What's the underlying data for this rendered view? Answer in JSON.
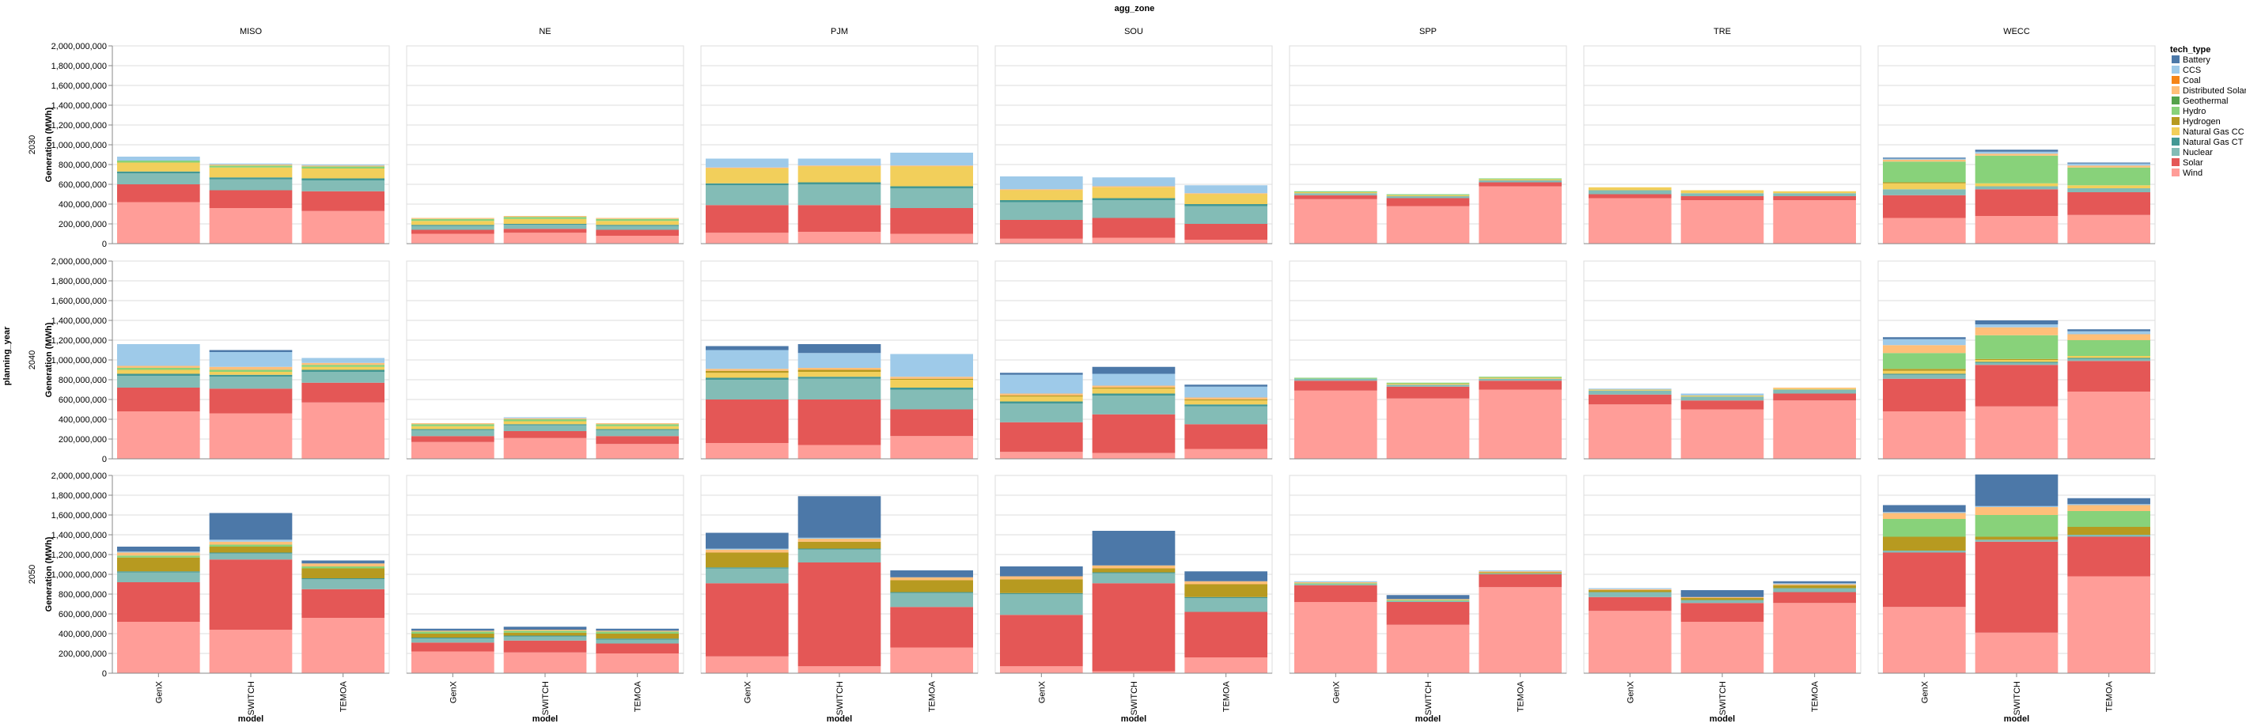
{
  "chart_data": {
    "type": "bar",
    "stacked": true,
    "facet_column_title": "agg_zone",
    "facet_row_title": "planning_year",
    "zones": [
      "MISO",
      "NE",
      "PJM",
      "SOU",
      "SPP",
      "TRE",
      "WECC"
    ],
    "years": [
      "2030",
      "2040",
      "2050"
    ],
    "models": [
      "GenX",
      "SWITCH",
      "TEMOA"
    ],
    "xlabel": "model",
    "ylabel": "Generation (MWh)",
    "ylim": [
      0,
      2000000000
    ],
    "yticks": [
      0,
      200000000,
      400000000,
      600000000,
      800000000,
      1000000000,
      1200000000,
      1400000000,
      1600000000,
      1800000000,
      2000000000
    ],
    "ytick_labels": [
      "0",
      "200,000,000",
      "400,000,000",
      "600,000,000",
      "800,000,000",
      "1,000,000,000",
      "1,200,000,000",
      "1,400,000,000",
      "1,600,000,000",
      "1,800,000,000",
      "2,000,000,000"
    ],
    "grid": true,
    "legend_title": "tech_type",
    "legend_position": "right",
    "stack_order": [
      "Wind",
      "Solar",
      "Nuclear",
      "Natural Gas CT",
      "Natural Gas CC",
      "Hydrogen",
      "Hydro",
      "Geothermal",
      "Distributed Solar",
      "Coal",
      "CCS",
      "Battery"
    ],
    "tech_types": [
      {
        "name": "Battery",
        "color": "#4c78a8"
      },
      {
        "name": "CCS",
        "color": "#9ecae9"
      },
      {
        "name": "Coal",
        "color": "#f58518"
      },
      {
        "name": "Distributed Solar",
        "color": "#ffbf79"
      },
      {
        "name": "Geothermal",
        "color": "#54a24b"
      },
      {
        "name": "Hydro",
        "color": "#88d27a"
      },
      {
        "name": "Hydrogen",
        "color": "#b79a20"
      },
      {
        "name": "Natural Gas CC",
        "color": "#f2cf5b"
      },
      {
        "name": "Natural Gas CT",
        "color": "#439894"
      },
      {
        "name": "Nuclear",
        "color": "#83bcb6"
      },
      {
        "name": "Solar",
        "color": "#e45756"
      },
      {
        "name": "Wind",
        "color": "#ff9d98"
      }
    ],
    "values_unit": "million MWh",
    "data": {
      "2030": {
        "MISO": {
          "GenX": {
            "Wind": 420,
            "Solar": 180,
            "Nuclear": 110,
            "Natural Gas CT": 20,
            "Natural Gas CC": 90,
            "Hydro": 20,
            "CCS": 40
          },
          "SWITCH": {
            "Wind": 360,
            "Solar": 180,
            "Nuclear": 110,
            "Natural Gas CT": 20,
            "Natural Gas CC": 100,
            "Hydro": 20,
            "Distributed Solar": 10,
            "CCS": 10
          },
          "TEMOA": {
            "Wind": 330,
            "Solar": 200,
            "Nuclear": 110,
            "Natural Gas CT": 20,
            "Natural Gas CC": 100,
            "Hydro": 20,
            "Distributed Solar": 10,
            "CCS": 10
          }
        },
        "NE": {
          "GenX": {
            "Wind": 100,
            "Solar": 40,
            "Nuclear": 40,
            "Natural Gas CT": 10,
            "Natural Gas CC": 40,
            "Hydro": 20,
            "Distributed Solar": 10
          },
          "SWITCH": {
            "Wind": 110,
            "Solar": 40,
            "Nuclear": 40,
            "Natural Gas CT": 10,
            "Natural Gas CC": 50,
            "Hydro": 20,
            "Distributed Solar": 10
          },
          "TEMOA": {
            "Wind": 80,
            "Solar": 60,
            "Nuclear": 40,
            "Natural Gas CT": 10,
            "Natural Gas CC": 40,
            "Hydro": 20,
            "Distributed Solar": 10
          }
        },
        "PJM": {
          "GenX": {
            "Wind": 110,
            "Solar": 280,
            "Nuclear": 200,
            "Natural Gas CT": 20,
            "Natural Gas CC": 150,
            "Distributed Solar": 10,
            "CCS": 90
          },
          "SWITCH": {
            "Wind": 120,
            "Solar": 270,
            "Nuclear": 210,
            "Natural Gas CT": 20,
            "Natural Gas CC": 160,
            "Distributed Solar": 10,
            "CCS": 70
          },
          "TEMOA": {
            "Wind": 100,
            "Solar": 260,
            "Nuclear": 200,
            "Natural Gas CT": 20,
            "Natural Gas CC": 200,
            "Distributed Solar": 10,
            "CCS": 130
          }
        },
        "SOU": {
          "GenX": {
            "Wind": 50,
            "Solar": 190,
            "Nuclear": 180,
            "Natural Gas CT": 20,
            "Natural Gas CC": 100,
            "Distributed Solar": 10,
            "CCS": 130
          },
          "SWITCH": {
            "Wind": 60,
            "Solar": 200,
            "Nuclear": 180,
            "Natural Gas CT": 20,
            "Natural Gas CC": 110,
            "Distributed Solar": 10,
            "CCS": 90
          },
          "TEMOA": {
            "Wind": 40,
            "Solar": 160,
            "Nuclear": 180,
            "Natural Gas CT": 20,
            "Natural Gas CC": 100,
            "Distributed Solar": 10,
            "CCS": 80
          }
        },
        "SPP": {
          "GenX": {
            "Wind": 450,
            "Solar": 40,
            "Nuclear": 20,
            "Natural Gas CC": 10,
            "Hydro": 10
          },
          "SWITCH": {
            "Wind": 380,
            "Solar": 80,
            "Nuclear": 20,
            "Natural Gas CC": 10,
            "Hydro": 10
          },
          "TEMOA": {
            "Wind": 580,
            "Solar": 40,
            "Nuclear": 20,
            "Natural Gas CC": 10,
            "Hydro": 10
          }
        },
        "TRE": {
          "GenX": {
            "Wind": 460,
            "Solar": 40,
            "Nuclear": 40,
            "Natural Gas CC": 30
          },
          "SWITCH": {
            "Wind": 440,
            "Solar": 40,
            "Nuclear": 30,
            "Natural Gas CC": 30
          },
          "TEMOA": {
            "Wind": 440,
            "Solar": 40,
            "Nuclear": 30,
            "Natural Gas CC": 20
          }
        },
        "WECC": {
          "GenX": {
            "Wind": 260,
            "Solar": 230,
            "Nuclear": 60,
            "Natural Gas CC": 60,
            "Hydrogen": 10,
            "Hydro": 210,
            "Distributed Solar": 20,
            "CCS": 10,
            "Battery": 10
          },
          "SWITCH": {
            "Wind": 280,
            "Solar": 270,
            "Nuclear": 30,
            "Natural Gas CC": 30,
            "Hydro": 280,
            "Distributed Solar": 20,
            "CCS": 20,
            "Battery": 20
          },
          "TEMOA": {
            "Wind": 290,
            "Solar": 230,
            "Nuclear": 40,
            "Natural Gas CC": 30,
            "Hydro": 180,
            "Distributed Solar": 20,
            "CCS": 20,
            "Battery": 10
          }
        }
      },
      "2040": {
        "MISO": {
          "GenX": {
            "Wind": 480,
            "Solar": 240,
            "Nuclear": 120,
            "Natural Gas CT": 20,
            "Natural Gas CC": 40,
            "Hydro": 20,
            "Distributed Solar": 20,
            "CCS": 220
          },
          "SWITCH": {
            "Wind": 460,
            "Solar": 250,
            "Nuclear": 120,
            "Natural Gas CT": 20,
            "Natural Gas CC": 30,
            "Hydro": 20,
            "Distributed Solar": 30,
            "CCS": 150,
            "Battery": 20
          },
          "TEMOA": {
            "Wind": 570,
            "Solar": 200,
            "Nuclear": 110,
            "Natural Gas CT": 20,
            "Natural Gas CC": 30,
            "Hydro": 20,
            "Distributed Solar": 20,
            "CCS": 50
          }
        },
        "NE": {
          "GenX": {
            "Wind": 170,
            "Solar": 60,
            "Nuclear": 60,
            "Natural Gas CT": 10,
            "Natural Gas CC": 30,
            "Hydro": 20,
            "Distributed Solar": 10
          },
          "SWITCH": {
            "Wind": 210,
            "Solar": 70,
            "Nuclear": 60,
            "Natural Gas CT": 10,
            "Natural Gas CC": 30,
            "Hydro": 20,
            "Distributed Solar": 10,
            "CCS": 10
          },
          "TEMOA": {
            "Wind": 150,
            "Solar": 80,
            "Nuclear": 60,
            "Natural Gas CT": 10,
            "Natural Gas CC": 30,
            "Hydro": 20,
            "Distributed Solar": 10
          }
        },
        "PJM": {
          "GenX": {
            "Wind": 160,
            "Solar": 440,
            "Nuclear": 200,
            "Natural Gas CT": 20,
            "Natural Gas CC": 50,
            "Hydrogen": 20,
            "Distributed Solar": 20,
            "CCS": 190,
            "Battery": 40
          },
          "SWITCH": {
            "Wind": 140,
            "Solar": 460,
            "Nuclear": 210,
            "Natural Gas CT": 20,
            "Natural Gas CC": 50,
            "Hydrogen": 20,
            "Distributed Solar": 20,
            "CCS": 150,
            "Battery": 90
          },
          "TEMOA": {
            "Wind": 230,
            "Solar": 270,
            "Nuclear": 200,
            "Natural Gas CT": 20,
            "Natural Gas CC": 80,
            "Hydrogen": 10,
            "Distributed Solar": 20,
            "CCS": 230
          }
        },
        "SOU": {
          "GenX": {
            "Wind": 70,
            "Solar": 300,
            "Nuclear": 190,
            "Natural Gas CT": 20,
            "Natural Gas CC": 50,
            "Hydrogen": 10,
            "Distributed Solar": 20,
            "CCS": 190,
            "Battery": 20
          },
          "SWITCH": {
            "Wind": 60,
            "Solar": 390,
            "Nuclear": 190,
            "Natural Gas CT": 20,
            "Natural Gas CC": 50,
            "Hydrogen": 10,
            "Distributed Solar": 20,
            "CCS": 120,
            "Battery": 70
          },
          "TEMOA": {
            "Wind": 100,
            "Solar": 250,
            "Nuclear": 180,
            "Natural Gas CT": 20,
            "Natural Gas CC": 40,
            "Hydrogen": 10,
            "Distributed Solar": 20,
            "CCS": 110,
            "Battery": 20
          }
        },
        "SPP": {
          "GenX": {
            "Wind": 690,
            "Solar": 100,
            "Nuclear": 20,
            "Hydro": 10
          },
          "SWITCH": {
            "Wind": 610,
            "Solar": 120,
            "Nuclear": 20,
            "Natural Gas CC": 10,
            "Hydro": 10
          },
          "TEMOA": {
            "Wind": 700,
            "Solar": 90,
            "Nuclear": 20,
            "Natural Gas CC": 10,
            "Hydro": 10
          }
        },
        "TRE": {
          "GenX": {
            "Wind": 550,
            "Solar": 100,
            "Nuclear": 40,
            "Natural Gas CC": 10,
            "CCS": 10
          },
          "SWITCH": {
            "Wind": 500,
            "Solar": 90,
            "Nuclear": 40,
            "Natural Gas CC": 10,
            "CCS": 20
          },
          "TEMOA": {
            "Wind": 590,
            "Solar": 70,
            "Nuclear": 40,
            "Natural Gas CC": 10,
            "Distributed Solar": 10
          }
        },
        "WECC": {
          "GenX": {
            "Wind": 480,
            "Solar": 330,
            "Nuclear": 40,
            "Natural Gas CT": 10,
            "Natural Gas CC": 30,
            "Hydrogen": 20,
            "Hydro": 160,
            "Distributed Solar": 80,
            "CCS": 60,
            "Battery": 20
          },
          "SWITCH": {
            "Wind": 530,
            "Solar": 420,
            "Nuclear": 20,
            "Natural Gas CT": 10,
            "Natural Gas CC": 20,
            "Hydrogen": 10,
            "Hydro": 240,
            "Distributed Solar": 80,
            "CCS": 30,
            "Battery": 40
          },
          "TEMOA": {
            "Wind": 680,
            "Solar": 310,
            "Nuclear": 20,
            "Natural Gas CT": 10,
            "Natural Gas CC": 20,
            "Hydro": 160,
            "Distributed Solar": 60,
            "CCS": 30,
            "Battery": 20
          }
        }
      },
      "2050": {
        "MISO": {
          "GenX": {
            "Wind": 520,
            "Solar": 400,
            "Nuclear": 100,
            "Natural Gas CT": 10,
            "Hydrogen": 140,
            "Hydro": 20,
            "Distributed Solar": 30,
            "CCS": 10,
            "Battery": 50
          },
          "SWITCH": {
            "Wind": 440,
            "Solar": 710,
            "Nuclear": 60,
            "Natural Gas CT": 10,
            "Hydrogen": 60,
            "Hydro": 20,
            "Distributed Solar": 30,
            "CCS": 20,
            "Battery": 270
          },
          "TEMOA": {
            "Wind": 560,
            "Solar": 290,
            "Nuclear": 100,
            "Natural Gas CT": 10,
            "Hydrogen": 100,
            "Hydro": 20,
            "Distributed Solar": 30,
            "Battery": 30
          }
        },
        "NE": {
          "GenX": {
            "Wind": 220,
            "Solar": 90,
            "Nuclear": 40,
            "Natural Gas CT": 10,
            "Hydrogen": 40,
            "Hydro": 20,
            "Distributed Solar": 10,
            "Battery": 20
          },
          "SWITCH": {
            "Wind": 210,
            "Solar": 120,
            "Nuclear": 40,
            "Natural Gas CT": 10,
            "Hydrogen": 30,
            "Hydro": 20,
            "Distributed Solar": 10,
            "Battery": 30
          },
          "TEMOA": {
            "Wind": 200,
            "Solar": 100,
            "Nuclear": 40,
            "Natural Gas CT": 10,
            "Hydrogen": 50,
            "Hydro": 20,
            "Distributed Solar": 10,
            "Battery": 20
          }
        },
        "PJM": {
          "GenX": {
            "Wind": 170,
            "Solar": 740,
            "Nuclear": 150,
            "Natural Gas CT": 10,
            "Hydrogen": 150,
            "Distributed Solar": 30,
            "CCS": 10,
            "Battery": 160
          },
          "SWITCH": {
            "Wind": 70,
            "Solar": 1050,
            "Nuclear": 130,
            "Natural Gas CT": 10,
            "Hydrogen": 70,
            "Distributed Solar": 30,
            "CCS": 10,
            "Battery": 420
          },
          "TEMOA": {
            "Wind": 260,
            "Solar": 410,
            "Nuclear": 140,
            "Natural Gas CT": 10,
            "Hydrogen": 120,
            "Distributed Solar": 30,
            "Battery": 70
          }
        },
        "SOU": {
          "GenX": {
            "Wind": 70,
            "Solar": 520,
            "Nuclear": 210,
            "Natural Gas CT": 10,
            "Hydrogen": 140,
            "Distributed Solar": 30,
            "Battery": 100
          },
          "SWITCH": {
            "Wind": 20,
            "Solar": 890,
            "Nuclear": 100,
            "Natural Gas CT": 10,
            "Hydrogen": 40,
            "Distributed Solar": 30,
            "Battery": 350
          },
          "TEMOA": {
            "Wind": 160,
            "Solar": 460,
            "Nuclear": 140,
            "Natural Gas CT": 10,
            "Hydrogen": 130,
            "Distributed Solar": 30,
            "Battery": 100
          }
        },
        "SPP": {
          "GenX": {
            "Wind": 720,
            "Solar": 170,
            "Nuclear": 10,
            "Hydro": 10,
            "Distributed Solar": 10,
            "CCS": 10
          },
          "SWITCH": {
            "Wind": 490,
            "Solar": 230,
            "Nuclear": 10,
            "Hydro": 10,
            "Distributed Solar": 10,
            "Battery": 40
          },
          "TEMOA": {
            "Wind": 870,
            "Solar": 130,
            "Nuclear": 10,
            "Hydrogen": 10,
            "Distributed Solar": 10,
            "CCS": 10
          }
        },
        "TRE": {
          "GenX": {
            "Wind": 630,
            "Solar": 140,
            "Nuclear": 50,
            "Hydrogen": 20,
            "Distributed Solar": 10,
            "CCS": 10
          },
          "SWITCH": {
            "Wind": 520,
            "Solar": 190,
            "Nuclear": 30,
            "Hydrogen": 20,
            "Distributed Solar": 10,
            "Battery": 70
          },
          "TEMOA": {
            "Wind": 710,
            "Solar": 110,
            "Nuclear": 40,
            "Hydrogen": 30,
            "Distributed Solar": 10,
            "CCS": 10,
            "Battery": 20
          }
        },
        "WECC": {
          "GenX": {
            "Wind": 670,
            "Solar": 550,
            "Nuclear": 20,
            "Hydrogen": 140,
            "Hydro": 180,
            "Distributed Solar": 60,
            "CCS": 10,
            "Battery": 70
          },
          "SWITCH": {
            "Wind": 410,
            "Solar": 920,
            "Nuclear": 20,
            "Hydrogen": 30,
            "Hydro": 220,
            "Distributed Solar": 80,
            "CCS": 10,
            "Battery": 320
          },
          "TEMOA": {
            "Wind": 980,
            "Solar": 400,
            "Nuclear": 20,
            "Hydrogen": 80,
            "Hydro": 160,
            "Distributed Solar": 60,
            "CCS": 10,
            "Battery": 60
          }
        }
      }
    }
  }
}
